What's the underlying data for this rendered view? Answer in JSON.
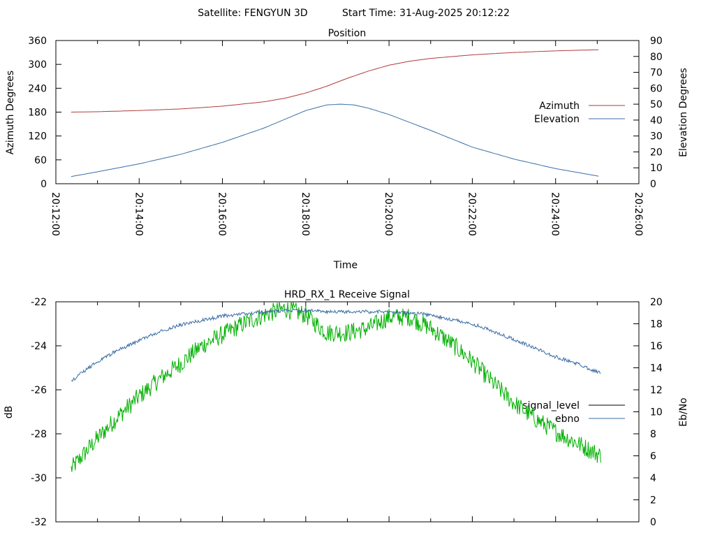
{
  "header": {
    "satellite": "Satellite: FENGYUN 3D",
    "start_time": "Start Time: 31-Aug-2025 20:12:22"
  },
  "chart_data": [
    {
      "type": "line",
      "title": "Position",
      "xlabel": "Time",
      "ylabel": "Azimuth Degrees",
      "y2label": "Elevation Degrees",
      "x_ticks": [
        "20:12:00",
        "20:14:00",
        "20:16:00",
        "20:18:00",
        "20:20:00",
        "20:22:00",
        "20:24:00",
        "20:26:00"
      ],
      "xlim": [
        "20:12:00",
        "20:26:00"
      ],
      "ylim": [
        0,
        360
      ],
      "y_ticks": [
        0,
        60,
        120,
        180,
        240,
        300,
        360
      ],
      "y2lim": [
        0,
        90
      ],
      "y2_ticks": [
        0,
        10,
        20,
        30,
        40,
        50,
        60,
        70,
        80,
        90
      ],
      "legend_position": "right",
      "colors": {
        "azimuth": "#b03a3a",
        "elevation": "#3b6ea5"
      },
      "series": [
        {
          "name": "Azimuth",
          "axis": "y",
          "x": [
            "20:12:22",
            "20:13:00",
            "20:14:00",
            "20:15:00",
            "20:16:00",
            "20:17:00",
            "20:17:30",
            "20:18:00",
            "20:18:30",
            "20:19:00",
            "20:19:30",
            "20:20:00",
            "20:20:30",
            "20:21:00",
            "20:22:00",
            "20:23:00",
            "20:24:00",
            "20:25:05"
          ],
          "values": [
            180,
            181,
            184,
            188,
            195,
            206,
            215,
            228,
            245,
            265,
            283,
            298,
            308,
            315,
            324,
            330,
            334,
            337
          ]
        },
        {
          "name": "Elevation",
          "axis": "y2",
          "x": [
            "20:12:22",
            "20:13:00",
            "20:14:00",
            "20:15:00",
            "20:16:00",
            "20:17:00",
            "20:17:30",
            "20:18:00",
            "20:18:30",
            "20:18:50",
            "20:19:10",
            "20:19:30",
            "20:20:00",
            "20:20:30",
            "20:21:00",
            "20:22:00",
            "20:23:00",
            "20:24:00",
            "20:25:05"
          ],
          "values": [
            4.5,
            7.5,
            12.5,
            18.5,
            26,
            35,
            40.5,
            46,
            49.5,
            50,
            49.5,
            47.5,
            43.5,
            38.5,
            33.5,
            23,
            15.5,
            9.5,
            4.5
          ]
        }
      ]
    },
    {
      "type": "line",
      "title": "HRD_RX_1 Receive Signal",
      "ylabel": "dB",
      "y2label": "Eb/No",
      "xlim": [
        "20:12:00",
        "20:26:00"
      ],
      "ylim": [
        -32,
        -22
      ],
      "y_ticks": [
        -32,
        -30,
        -28,
        -26,
        -24,
        -22
      ],
      "y2lim": [
        0,
        20
      ],
      "y2_ticks": [
        0,
        2,
        4,
        6,
        8,
        10,
        12,
        14,
        16,
        18,
        20
      ],
      "legend_position": "right",
      "colors": {
        "signal_level": "#000000",
        "ebno": "#3b6ea5",
        "signal_trace": "#00b000"
      },
      "series": [
        {
          "name": "signal_level",
          "axis": "y",
          "x": [
            "20:12:22",
            "20:13:00",
            "20:13:30",
            "20:14:00",
            "20:14:30",
            "20:15:00",
            "20:15:30",
            "20:16:00",
            "20:16:30",
            "20:17:00",
            "20:17:30",
            "20:18:00",
            "20:18:30",
            "20:19:00",
            "20:19:30",
            "20:20:00",
            "20:20:30",
            "20:21:00",
            "20:21:30",
            "20:22:00",
            "20:22:30",
            "20:23:00",
            "20:23:30",
            "20:24:00",
            "20:24:30",
            "20:25:05"
          ],
          "values": [
            -29.6,
            -28.2,
            -27.2,
            -26.3,
            -25.5,
            -24.8,
            -24.0,
            -23.5,
            -23.0,
            -22.6,
            -22.3,
            -22.6,
            -23.4,
            -23.4,
            -23.2,
            -22.7,
            -22.7,
            -23.2,
            -23.9,
            -24.7,
            -25.7,
            -26.6,
            -27.3,
            -27.9,
            -28.4,
            -29.0
          ]
        },
        {
          "name": "ebno",
          "axis": "y2",
          "x": [
            "20:12:22",
            "20:13:00",
            "20:13:30",
            "20:14:00",
            "20:14:30",
            "20:15:00",
            "20:15:30",
            "20:16:00",
            "20:16:30",
            "20:17:00",
            "20:17:30",
            "20:18:00",
            "20:18:30",
            "20:19:00",
            "20:19:30",
            "20:20:00",
            "20:20:30",
            "20:21:00",
            "20:21:30",
            "20:22:00",
            "20:22:30",
            "20:23:00",
            "20:23:30",
            "20:24:00",
            "20:24:30",
            "20:25:05"
          ],
          "values": [
            12.8,
            14.6,
            15.6,
            16.5,
            17.3,
            17.9,
            18.3,
            18.7,
            18.9,
            19.1,
            19.2,
            19.2,
            19.1,
            19.1,
            19.1,
            19.1,
            19.0,
            18.8,
            18.4,
            18.0,
            17.3,
            16.6,
            15.8,
            15.0,
            14.4,
            13.5
          ]
        }
      ]
    }
  ]
}
